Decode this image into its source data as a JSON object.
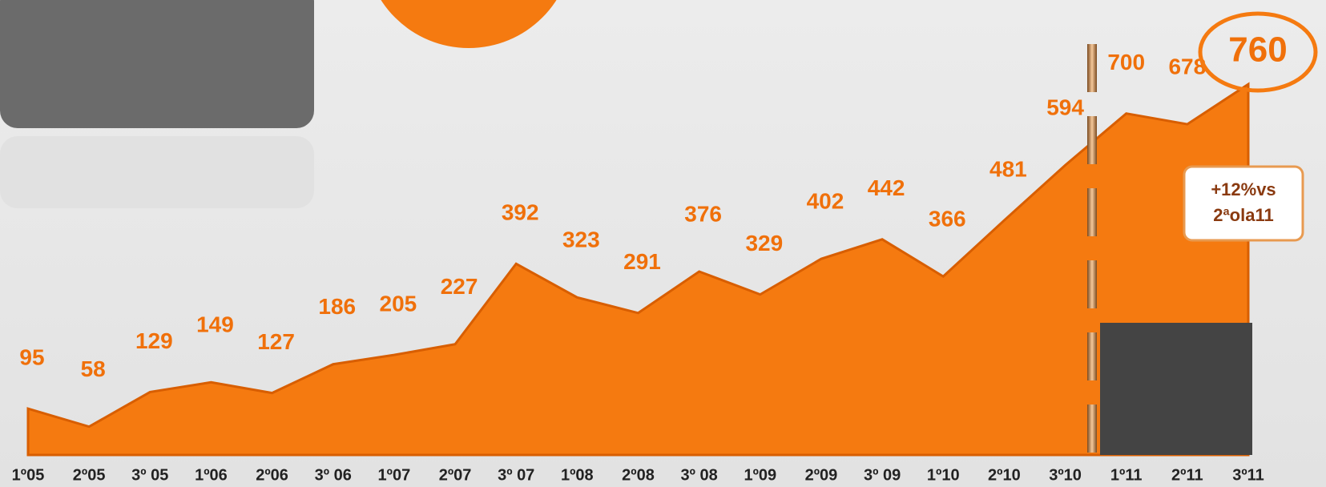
{
  "chart_data": {
    "type": "area",
    "categories": [
      "1º05",
      "2º05",
      "3º 05",
      "1º06",
      "2º06",
      "3º 06",
      "1º07",
      "2º07",
      "3º 07",
      "1º08",
      "2º08",
      "3º 08",
      "1º09",
      "2º09",
      "3º 09",
      "1º10",
      "2º10",
      "3º10",
      "1º11",
      "2º11",
      "3º11"
    ],
    "values": [
      95,
      58,
      129,
      149,
      127,
      186,
      205,
      227,
      392,
      323,
      291,
      376,
      329,
      402,
      442,
      366,
      481,
      594,
      700,
      678,
      760
    ],
    "color": "#f57a10",
    "annotation": [
      "+12%vs",
      "2ªola11"
    ]
  }
}
